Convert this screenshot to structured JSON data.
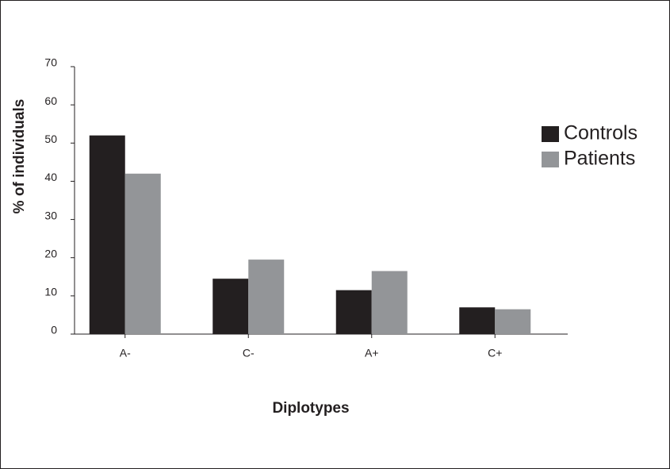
{
  "chart_data": {
    "type": "bar",
    "y_label": "% of individuals",
    "x_label": "Diplotypes",
    "categories": [
      "A-",
      "C-",
      "A+",
      "C+"
    ],
    "series": [
      {
        "name": "Controls",
        "color": "#231f20",
        "values": [
          52,
          14.5,
          11.5,
          7
        ]
      },
      {
        "name": "Patients",
        "color": "#939598",
        "values": [
          42,
          19.5,
          16.5,
          6.5
        ]
      }
    ],
    "ylim": [
      0,
      70
    ],
    "yticks": [
      0,
      10,
      20,
      30,
      40,
      50,
      60,
      70
    ],
    "legend": "right"
  }
}
